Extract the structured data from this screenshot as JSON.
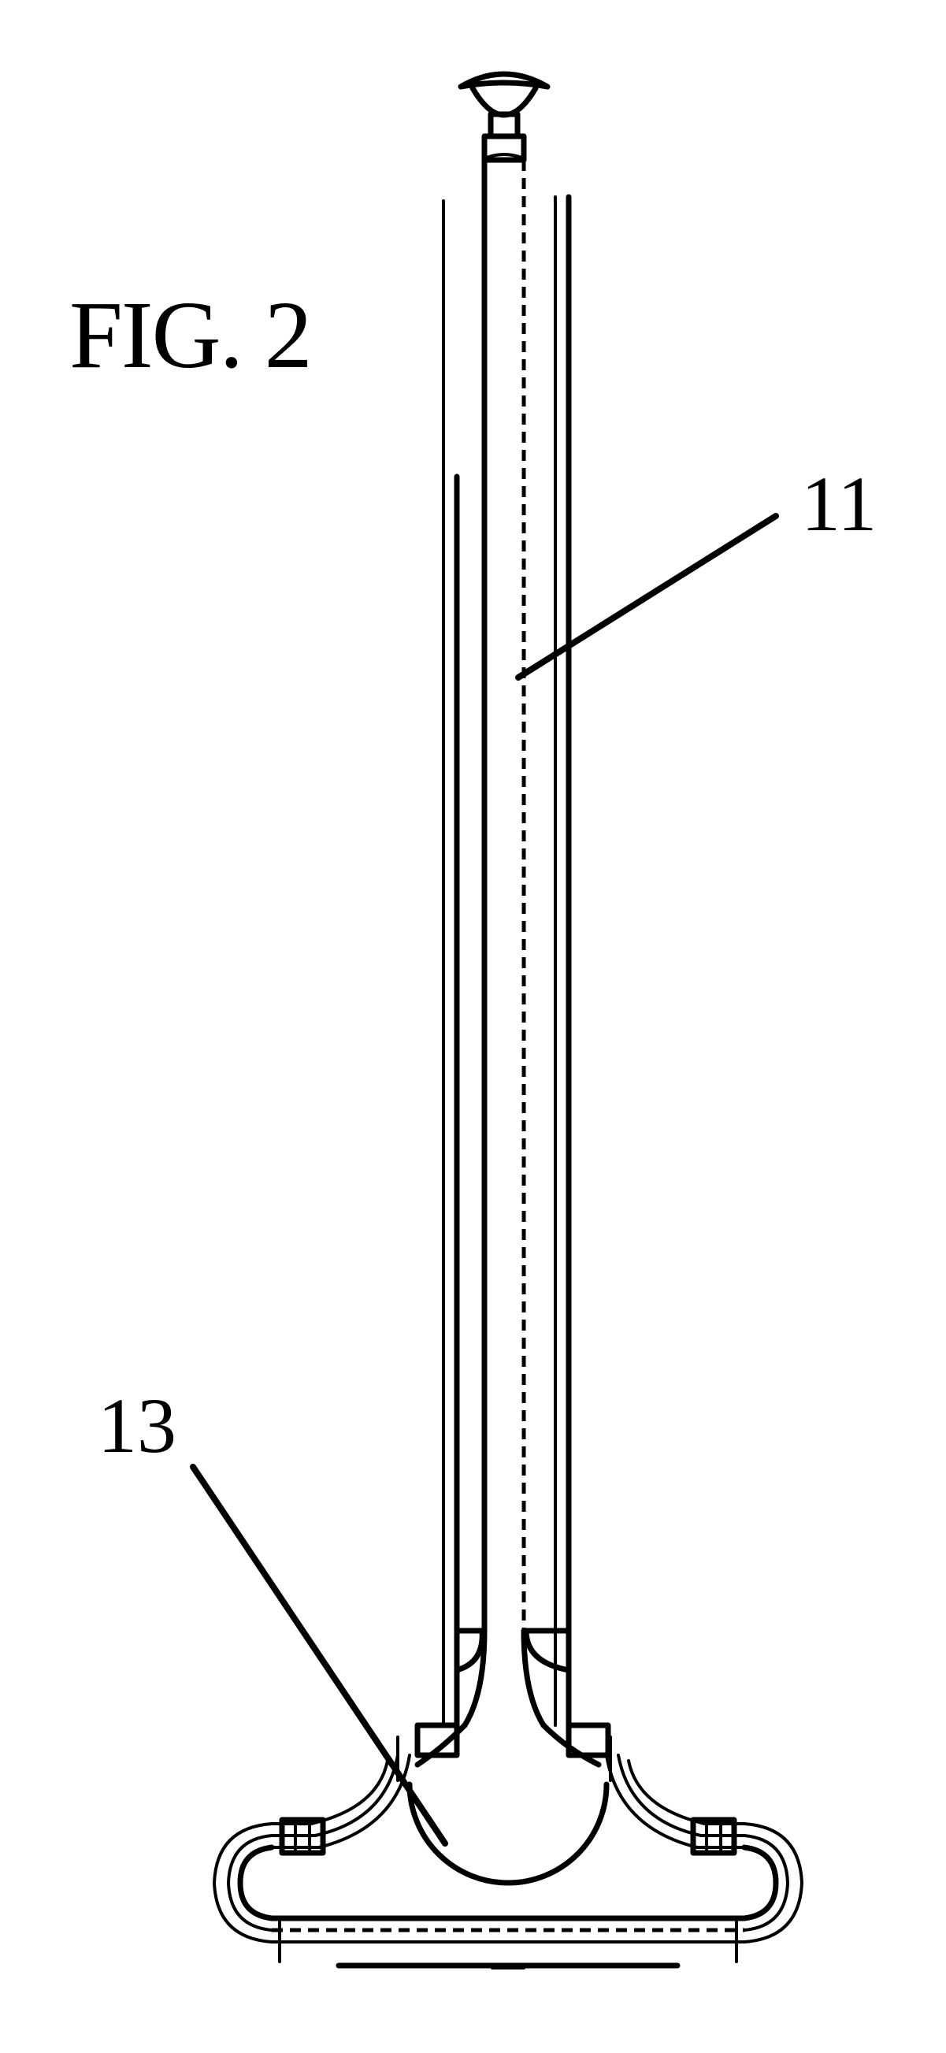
{
  "figure": {
    "title": "FIG. 2",
    "reference_numerals": [
      {
        "id": "11",
        "text": "11"
      },
      {
        "id": "13",
        "text": "13"
      }
    ],
    "ink_color": "#000000",
    "paper_color": "#ffffff"
  }
}
